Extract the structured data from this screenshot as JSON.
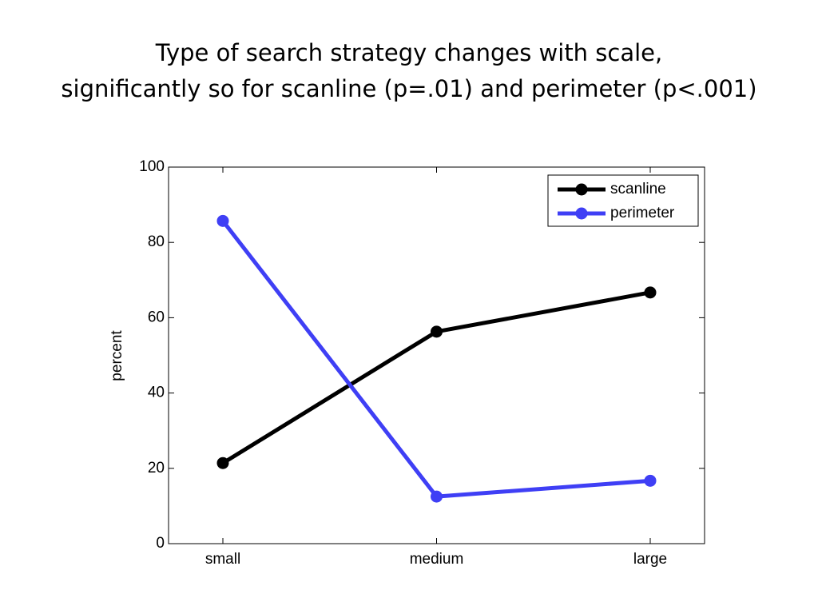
{
  "chart_data": {
    "type": "line",
    "title": [
      "Type of search strategy changes with scale,",
      "significantly so for scanline (p=.01) and perimeter (p<.001)"
    ],
    "y_label": "percent",
    "categories": [
      "small",
      "medium",
      "large"
    ],
    "series": [
      {
        "name": "scanline",
        "color": "#000000",
        "values": [
          21.4,
          56.3,
          66.7
        ]
      },
      {
        "name": "perimeter",
        "color": "#3f3ff5",
        "values": [
          85.7,
          12.5,
          16.7
        ]
      }
    ],
    "ylim": [
      0,
      100
    ],
    "yticks": [
      0,
      20,
      40,
      60,
      80,
      100
    ],
    "grid": false,
    "legend": "upper right"
  }
}
